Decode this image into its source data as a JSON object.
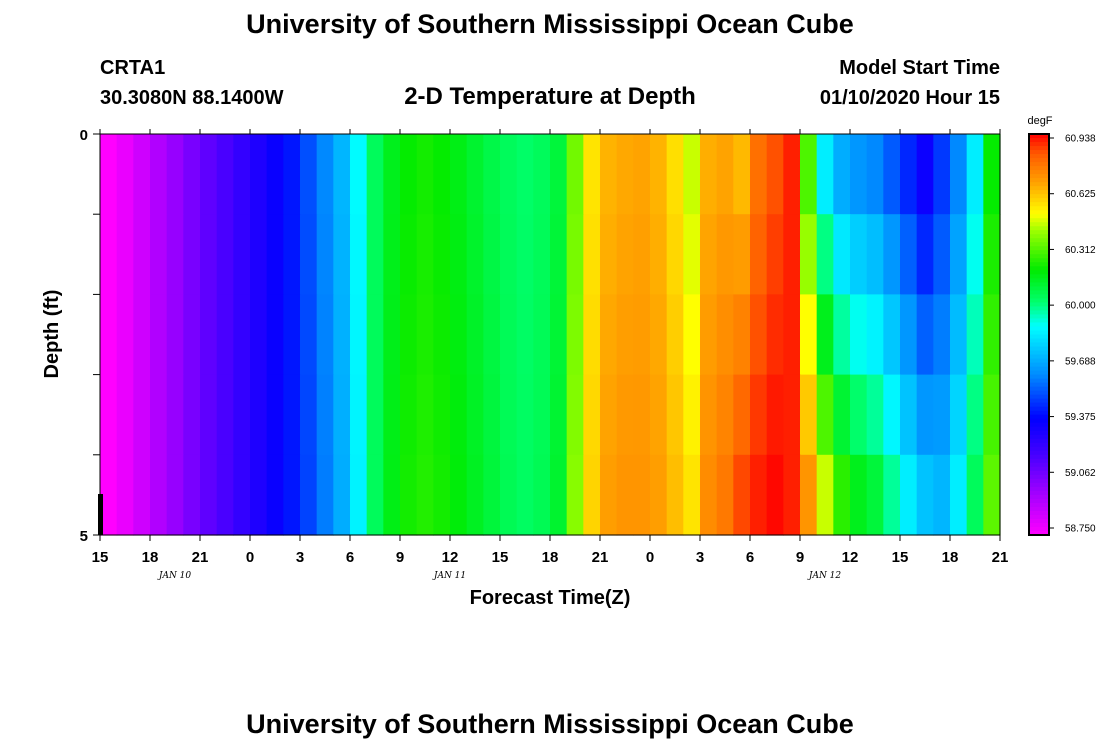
{
  "header": {
    "title": "University of Southern Mississippi Ocean Cube",
    "station": "CRTA1",
    "coords": "30.3080N 88.1400W",
    "plot_title": "2-D Temperature at Depth",
    "model_label": "Model Start Time",
    "model_time": "01/10/2020 Hour 15"
  },
  "footer": {
    "title": "University of Southern Mississippi Ocean Cube"
  },
  "chart_data": {
    "type": "heatmap",
    "title": "2-D Temperature at Depth",
    "xlabel": "Forecast Time(Z)",
    "ylabel": "Depth (ft)",
    "x_tick_labels": [
      "15",
      "18",
      "21",
      "0",
      "3",
      "6",
      "9",
      "12",
      "15",
      "18",
      "21",
      "0",
      "3",
      "6",
      "9",
      "12",
      "15",
      "18",
      "21"
    ],
    "date_labels": [
      {
        "label": "JAN 10",
        "tick_index": 1.5
      },
      {
        "label": "JAN 11",
        "tick_index": 7
      },
      {
        "label": "JAN 12",
        "tick_index": 14.5
      }
    ],
    "y_ticks": [
      "0",
      "5"
    ],
    "ylim": [
      0,
      5
    ],
    "x_range_hours": [
      0,
      54
    ],
    "colorbar": {
      "unit": "degF",
      "ticks": [
        "60.938",
        "60.625",
        "60.312",
        "60.000",
        "59.688",
        "59.375",
        "59.062",
        "58.750"
      ],
      "min": 58.75,
      "max": 60.938
    },
    "surface_temperature_by_hour": [
      58.75,
      58.8,
      58.87,
      58.94,
      59.0,
      59.07,
      59.13,
      59.18,
      59.24,
      59.3,
      59.36,
      59.42,
      59.52,
      59.62,
      59.72,
      59.88,
      60.05,
      60.15,
      60.2,
      60.22,
      60.2,
      60.16,
      60.12,
      60.08,
      60.05,
      60.03,
      60.05,
      60.1,
      60.35,
      60.55,
      60.64,
      60.66,
      60.67,
      60.64,
      60.56,
      60.45,
      60.65,
      60.67,
      60.63,
      60.78,
      60.84,
      60.9,
      60.3,
      59.85,
      59.7,
      59.65,
      59.62,
      59.54,
      59.45,
      59.35,
      59.48,
      59.62,
      59.85,
      60.2
    ],
    "bottom_temperature_by_hour": [
      58.75,
      58.8,
      58.87,
      58.94,
      59.0,
      59.07,
      59.13,
      59.18,
      59.24,
      59.3,
      59.36,
      59.42,
      59.5,
      59.6,
      59.7,
      59.86,
      60.05,
      60.16,
      60.22,
      60.24,
      60.22,
      60.18,
      60.14,
      60.1,
      60.06,
      60.04,
      60.06,
      60.12,
      60.38,
      60.58,
      60.68,
      60.7,
      60.7,
      60.68,
      60.62,
      60.55,
      60.72,
      60.76,
      60.85,
      60.9,
      60.93,
      60.9,
      60.7,
      60.45,
      60.25,
      60.15,
      60.1,
      59.98,
      59.85,
      59.75,
      59.72,
      59.85,
      60.05,
      60.32
    ]
  }
}
